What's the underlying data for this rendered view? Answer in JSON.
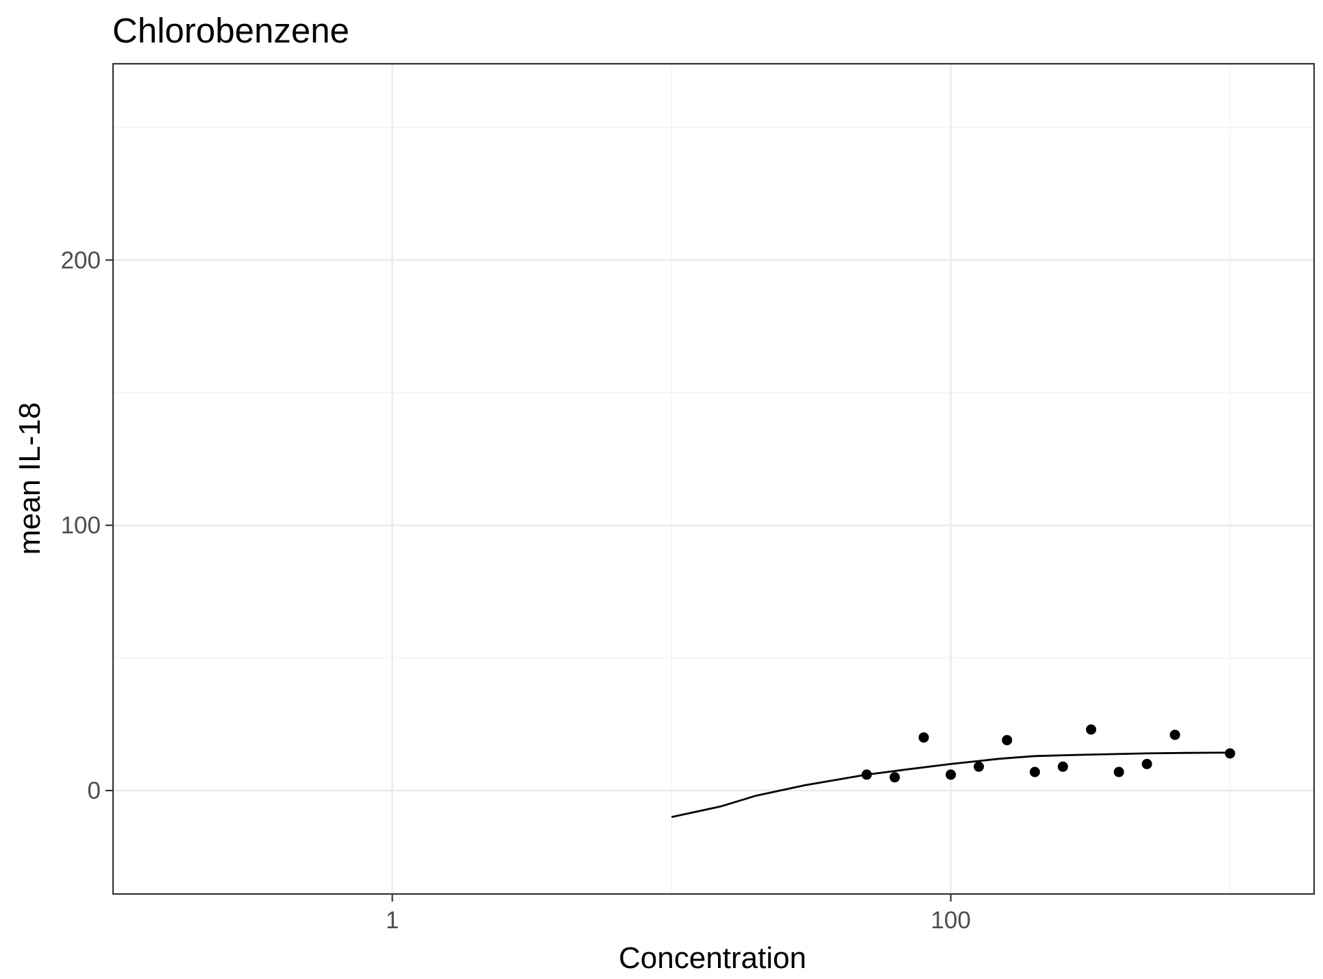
{
  "chart_data": {
    "type": "scatter",
    "title": "Chlorobenzene",
    "xlabel": "Concentration",
    "ylabel": "mean IL-18",
    "x_scale": "log10",
    "xlim": [
      0.1,
      2000
    ],
    "ylim": [
      -39,
      274
    ],
    "x_major_ticks": [
      1,
      100
    ],
    "x_tick_labels": [
      "1",
      "100"
    ],
    "x_minor_ticks": [
      0.1,
      10,
      1000
    ],
    "y_major_ticks": [
      0,
      100,
      200
    ],
    "y_tick_labels": [
      "0",
      "100",
      "200"
    ],
    "y_minor_ticks": [
      50,
      150,
      250
    ],
    "grid": true,
    "theme": "bw",
    "series": [
      {
        "type": "scatter",
        "x": [
          50,
          63,
          80,
          100,
          126,
          159,
          200,
          252,
          318,
          400,
          504,
          635,
          1000
        ],
        "y": [
          6,
          5,
          20,
          6,
          9,
          19,
          7,
          9,
          23,
          7,
          10,
          21,
          14
        ]
      },
      {
        "type": "line",
        "x": [
          10,
          15,
          20,
          30,
          50,
          70,
          100,
          150,
          200,
          300,
          500,
          700,
          1000
        ],
        "y": [
          -10,
          -6,
          -2,
          2,
          6,
          8,
          10,
          12,
          13,
          13.5,
          14,
          14.2,
          14.3
        ]
      }
    ],
    "colors": {
      "points": "#000000",
      "line": "#000000",
      "grid": "#ebebeb",
      "panel_border": "#333333",
      "tick_label": "#4d4d4d"
    }
  }
}
